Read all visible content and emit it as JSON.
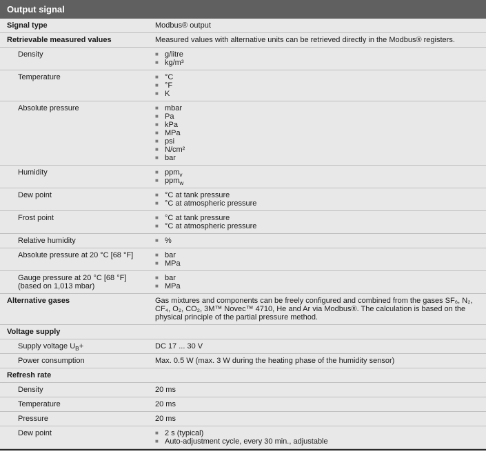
{
  "header": "Output signal",
  "rows": [
    {
      "type": "kv-bold",
      "label": "Signal type",
      "value": "Modbus® output"
    },
    {
      "type": "kv-bold",
      "label": "Retrievable measured values",
      "value": "Measured values with alternative units can be retrieved directly in the Modbus® registers."
    },
    {
      "type": "kv-indent-list",
      "label": "Density",
      "items": [
        "g/litre",
        "kg/m³"
      ]
    },
    {
      "type": "kv-indent-list",
      "label": "Temperature",
      "items": [
        "°C",
        "°F",
        "K"
      ]
    },
    {
      "type": "kv-indent-list",
      "label": "Absolute pressure",
      "items": [
        "mbar",
        "Pa",
        "kPa",
        "MPa",
        "psi",
        "N/cm²",
        "bar"
      ]
    },
    {
      "type": "kv-indent-list",
      "label": "Humidity",
      "items": [
        "ppmᵥ",
        "ppmw"
      ],
      "subs": [
        null,
        "w"
      ]
    },
    {
      "type": "kv-indent-list",
      "label": "Dew point",
      "items": [
        "°C at tank pressure",
        "°C at atmospheric pressure"
      ]
    },
    {
      "type": "kv-indent-list",
      "label": "Frost point",
      "items": [
        "°C at tank pressure",
        "°C at atmospheric pressure"
      ]
    },
    {
      "type": "kv-indent-list",
      "label": "Relative humidity",
      "items": [
        "%"
      ]
    },
    {
      "type": "kv-indent-list",
      "label": "Absolute pressure at 20 °C [68 °F]",
      "items": [
        "bar",
        "MPa"
      ]
    },
    {
      "type": "kv-indent-list",
      "label": "Gauge pressure at 20 °C [68 °F] (based on 1,013 mbar)",
      "items": [
        "bar",
        "MPa"
      ]
    },
    {
      "type": "kv-bold",
      "label": "Alternative gases",
      "value": "Gas mixtures and components can be freely configured and combined from the gases SF₆, N₂, CF₄, O₂, CO₂, 3M™ Novec™ 4710, He and Ar via Modbus®. The calculation is based on the physical principle of the partial pressure method."
    },
    {
      "type": "section",
      "label": "Voltage supply"
    },
    {
      "type": "kv-indent",
      "label": "Supply voltage Uᴮ+",
      "labelHtml": "Supply voltage U<sub>B</sub>+",
      "value": "DC 17 ... 30 V"
    },
    {
      "type": "kv-indent",
      "label": "Power consumption",
      "value": "Max. 0.5 W (max. 3 W during the heating phase of the humidity sensor)"
    },
    {
      "type": "section",
      "label": "Refresh rate"
    },
    {
      "type": "kv-indent",
      "label": "Density",
      "value": "20 ms"
    },
    {
      "type": "kv-indent",
      "label": "Temperature",
      "value": "20 ms"
    },
    {
      "type": "kv-indent",
      "label": "Pressure",
      "value": "20 ms"
    },
    {
      "type": "kv-indent-list",
      "label": "Dew point",
      "items": [
        "2 s (typical)",
        "Auto-adjustment cycle, every 30 min., adjustable"
      ]
    }
  ]
}
